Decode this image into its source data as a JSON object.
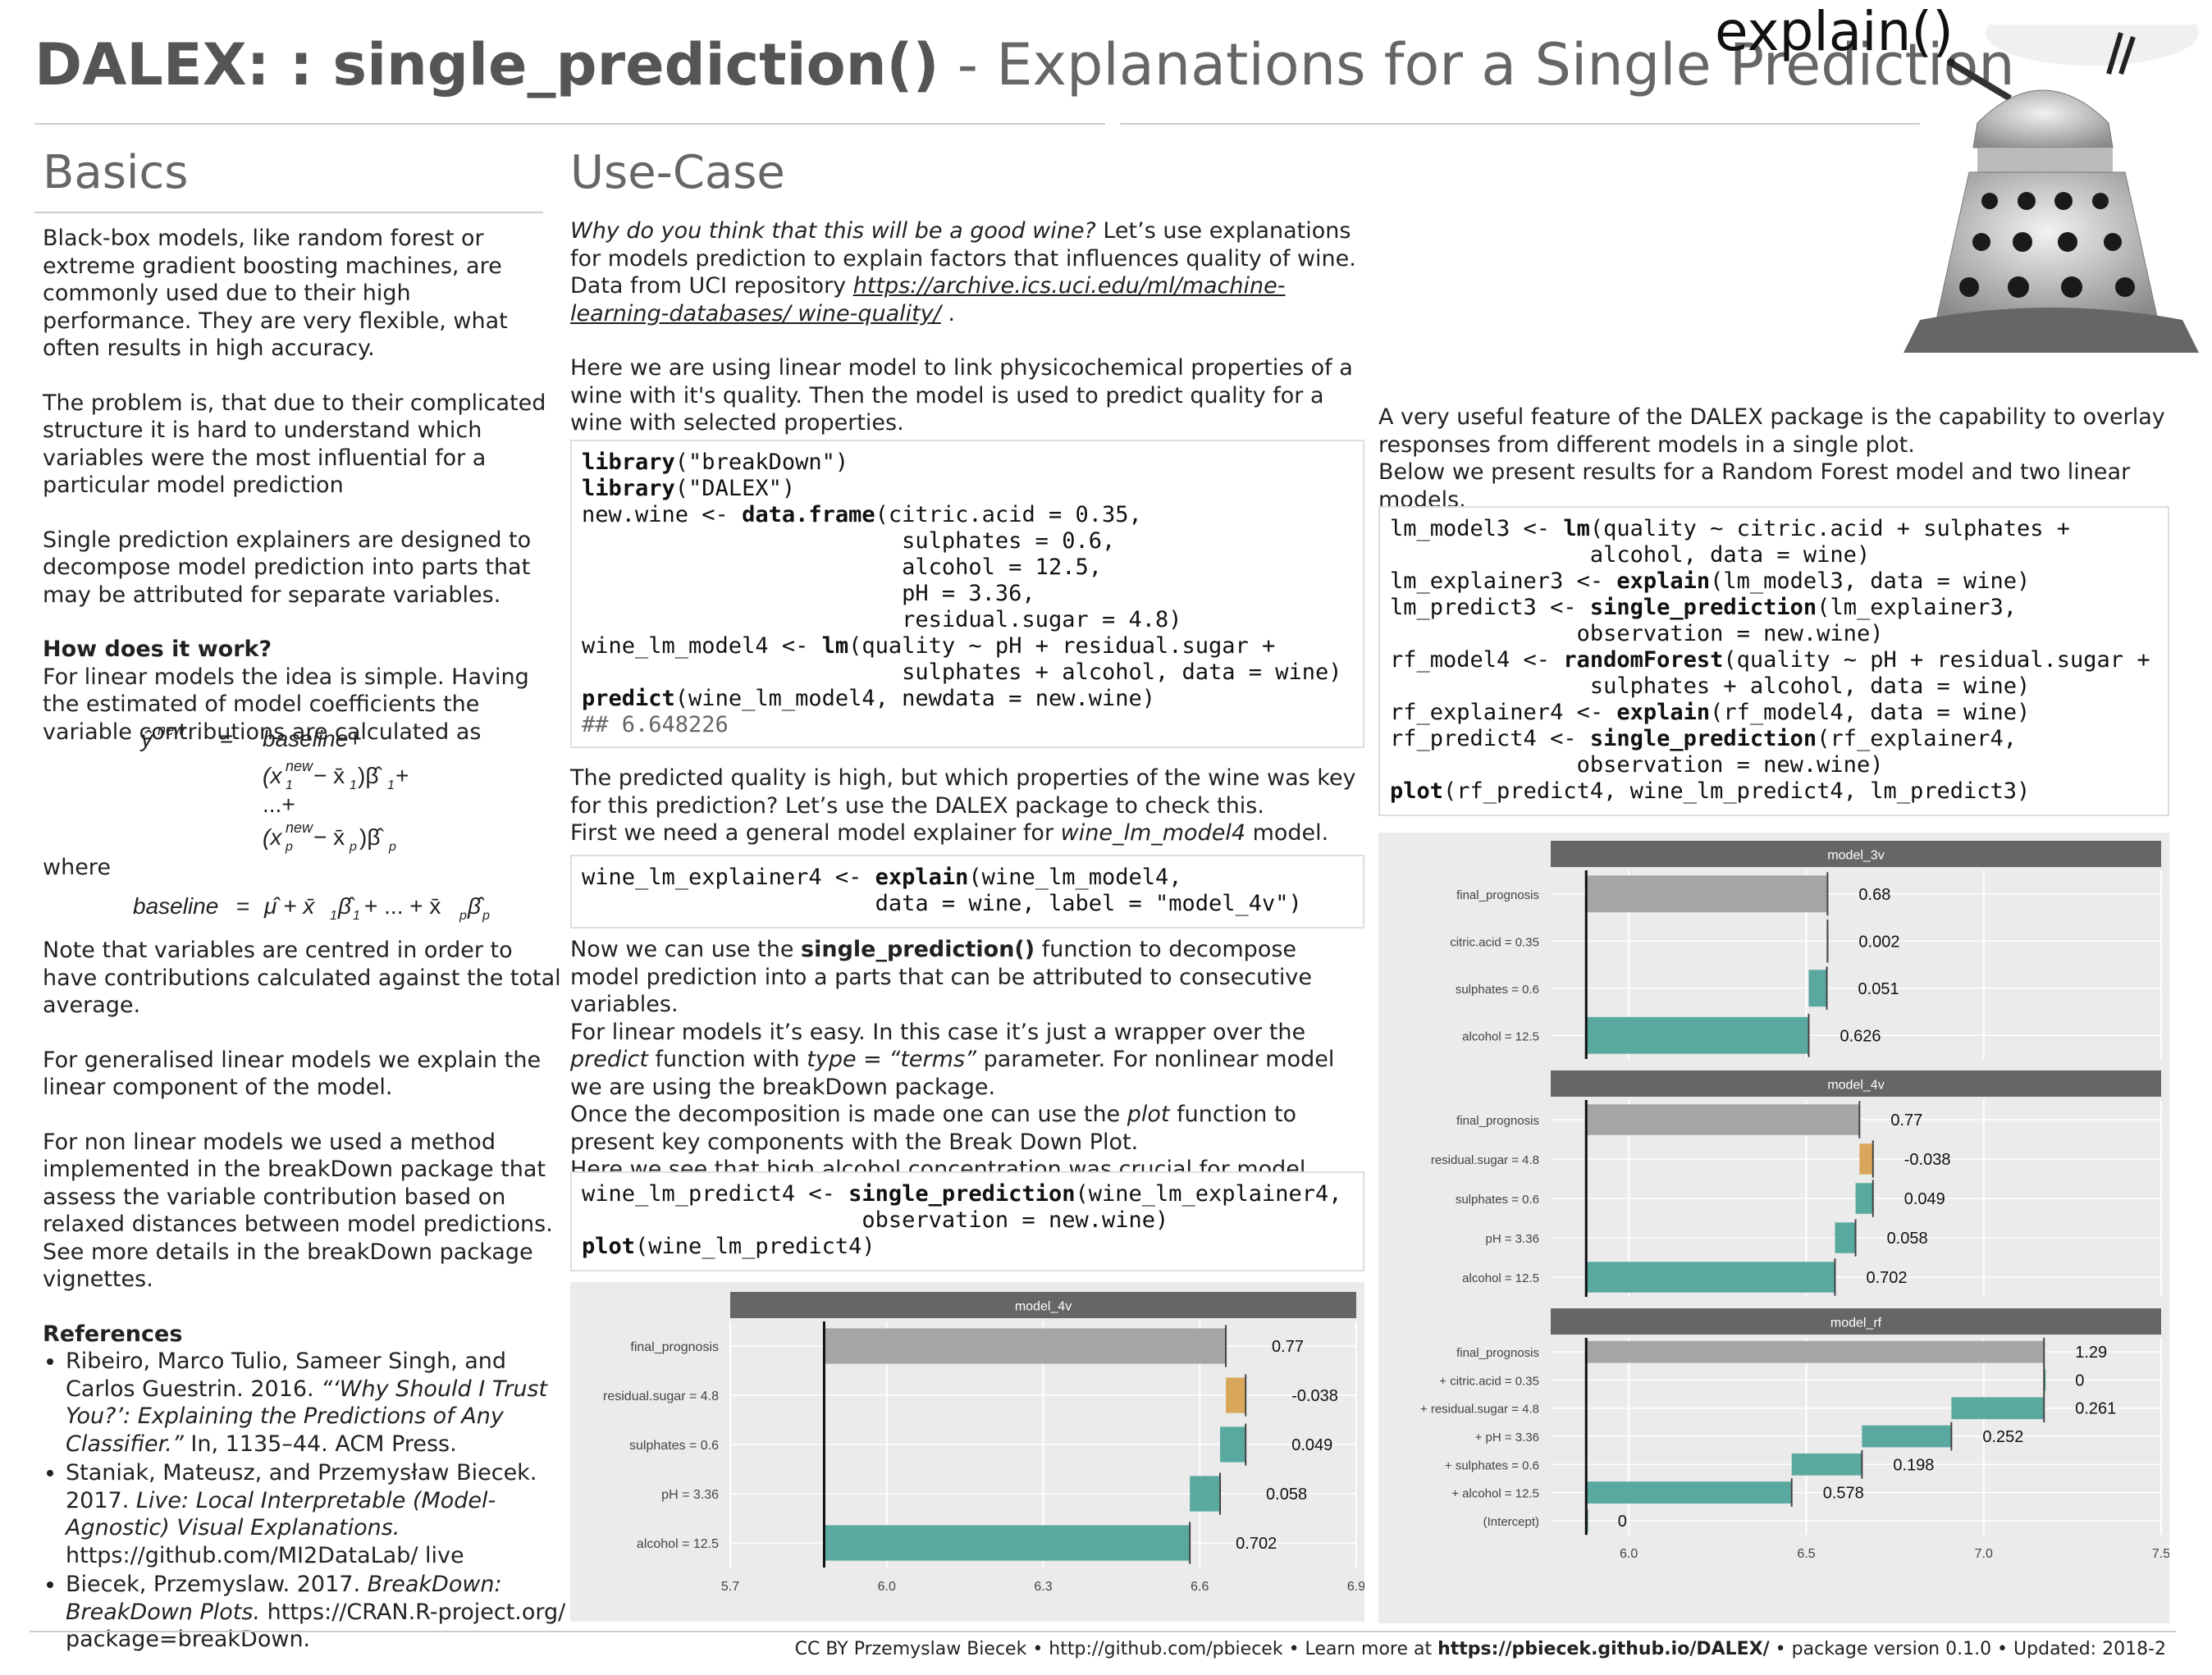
{
  "header": {
    "title_bold": "DALEX: : single_prediction()",
    "title_rest": " - Explanations for a Single Prediction",
    "explain_label": "explain()"
  },
  "basics": {
    "heading": "Basics",
    "p1": "Black-box models, like random forest or extreme gradient boosting machines, are commonly used due to their high performance. They are very flexible, what often results in high accuracy.",
    "p2": "The problem is, that due to their complicated structure it is hard to understand which variables were the most influential for a particular model prediction",
    "p3": "Single prediction explainers are designed to decompose model prediction into parts that may be attributed for separate variables.",
    "how_heading": "How does it work?",
    "p4": "For linear models the idea is simple. Having the estimated of model coefficients the variable contributions are calculated as",
    "where": "where",
    "p5": "Note  that variables are centred in order to have contributions calculated against the total average.",
    "p6": "For generalised linear models we explain the linear component of the model.",
    "p7": "For non linear models we used a method implemented in the breakDown package that assess the variable contribution based on relaxed distances between model predictions. See more details in the breakDown package vignettes.",
    "refs_heading": "References",
    "ref1_a": "Ribeiro, Marco Tulio, Sameer Singh, and Carlos Guestrin. 2016. ",
    "ref1_i": "“‘Why Should I Trust You?’: Explaining the Predictions of Any Classifier.”",
    "ref1_b": " In, 1135–44. ACM Press.",
    "ref2_a": "Staniak, Mateusz, and Przemysław Biecek. 2017. ",
    "ref2_i": "Live: Local Interpretable (Model-Agnostic) Visual Explanations.",
    "ref2_b": " https://github.com/MI2DataLab/ live",
    "ref3_a": "Biecek, Przemyslaw. 2017. ",
    "ref3_i": "BreakDown: BreakDown Plots.",
    "ref3_b": " https://CRAN.R-project.org/ package=breakDown."
  },
  "usecase": {
    "heading": "Use-Case",
    "p1_i": "Why do you think that this will be a good wine?",
    "p1_a": " Let’s use explanations for models prediction to explain factors that influences quality of wine. Data from UCI repository ",
    "p1_link": "https://archive.ics.uci.edu/ml/machine-learning-databases/ wine-quality/",
    "p1_end": " .",
    "p2": "Here we are using linear model to link physicochemical properties of a wine with it's quality. Then the model is used to predict quality for a wine with selected properties.",
    "p3_a": "The predicted quality is high, but which properties of the wine was key for this prediction? Let’s use the DALEX package to check this.",
    "p3_b": "First we need a general model explainer for ",
    "p3_i": "wine_lm_model4",
    "p3_c": " model.",
    "p4_a": "Now we can use the ",
    "p4_b": "single_prediction()",
    "p4_c": " function to decompose model prediction into a parts that can be attributed to consecutive variables.",
    "p4_d": "For linear models it’s easy. In this case it’s just a wrapper over the ",
    "p4_e": "predict",
    "p4_f": " function with ",
    "p4_g": "type = “terms”",
    "p4_h": " parameter. For nonlinear model we are using the breakDown package.",
    "p4_j": "Once the decomposition is made one can use the ",
    "p4_k": "plot",
    "p4_l": " function to present key components with the Break Down Plot.",
    "p4_m": "Here we see that high alcohol concentration was crucial for model prediction."
  },
  "right": {
    "p1": "A very useful feature of the DALEX package is the capability to overlay responses from different models in a single plot.",
    "p2": "Below we present results for a Random Forest model and two linear models."
  },
  "footer": {
    "a": "CC BY Przemyslaw Biecek  •  http://github.com/pbiecek •  Learn more at  ",
    "b": "https://pbiecek.github.io/DALEX/",
    "c": "  •  package version  0.1.0 •  Updated: 2018-2"
  },
  "colors": {
    "positive": "#5aa9a0",
    "negative": "#d9a75c",
    "final": "#a5a5a5",
    "strip": "#666666",
    "panel": "#ebebeb"
  },
  "chart_data": [
    {
      "type": "bar",
      "subtype": "waterfall",
      "panels": [
        {
          "strip": "model_4v",
          "rows": [
            {
              "label": "final_prognosis",
              "start": 5.88,
              "end": 6.65,
              "value": "0.77",
              "kind": "final"
            },
            {
              "label": "residual.sugar = 4.8",
              "start": 6.65,
              "end": 6.688,
              "value": "-0.038",
              "kind": "negative"
            },
            {
              "label": "sulphates = 0.6",
              "start": 6.639,
              "end": 6.688,
              "value": "0.049",
              "kind": "positive"
            },
            {
              "label": "pH = 3.36",
              "start": 6.581,
              "end": 6.639,
              "value": "0.058",
              "kind": "positive"
            },
            {
              "label": "alcohol = 12.5",
              "start": 5.879,
              "end": 6.581,
              "value": "0.702",
              "kind": "positive"
            }
          ]
        }
      ],
      "xticks": [
        "5.7",
        "6.0",
        "6.3",
        "6.6",
        "6.9"
      ],
      "xlim": [
        5.7,
        6.9
      ],
      "baseline": 5.88
    },
    {
      "type": "bar",
      "subtype": "waterfall",
      "panels": [
        {
          "strip": "model_3v",
          "rows": [
            {
              "label": "final_prognosis",
              "start": 5.88,
              "end": 6.56,
              "value": "0.68",
              "kind": "final"
            },
            {
              "label": "citric.acid = 0.35",
              "start": 6.558,
              "end": 6.56,
              "value": "0.002",
              "kind": "positive"
            },
            {
              "label": "sulphates = 0.6",
              "start": 6.507,
              "end": 6.558,
              "value": "0.051",
              "kind": "positive"
            },
            {
              "label": "alcohol = 12.5",
              "start": 5.881,
              "end": 6.507,
              "value": "0.626",
              "kind": "positive"
            }
          ]
        },
        {
          "strip": "model_4v",
          "rows": [
            {
              "label": "final_prognosis",
              "start": 5.88,
              "end": 6.65,
              "value": "0.77",
              "kind": "final"
            },
            {
              "label": "residual.sugar = 4.8",
              "start": 6.65,
              "end": 6.688,
              "value": "-0.038",
              "kind": "negative"
            },
            {
              "label": "sulphates = 0.6",
              "start": 6.639,
              "end": 6.688,
              "value": "0.049",
              "kind": "positive"
            },
            {
              "label": "pH = 3.36",
              "start": 6.581,
              "end": 6.639,
              "value": "0.058",
              "kind": "positive"
            },
            {
              "label": "alcohol = 12.5",
              "start": 5.879,
              "end": 6.581,
              "value": "0.702",
              "kind": "positive"
            }
          ]
        },
        {
          "strip": "model_rf",
          "rows": [
            {
              "label": "final_prognosis",
              "start": 5.88,
              "end": 7.17,
              "value": "1.29",
              "kind": "final"
            },
            {
              "label": "+ citric.acid = 0.35",
              "start": 7.17,
              "end": 7.17,
              "value": "0",
              "kind": "positive"
            },
            {
              "label": "+ residual.sugar = 4.8",
              "start": 6.909,
              "end": 7.17,
              "value": "0.261",
              "kind": "positive"
            },
            {
              "label": "+ pH = 3.36",
              "start": 6.657,
              "end": 6.909,
              "value": "0.252",
              "kind": "positive"
            },
            {
              "label": "+ sulphates = 0.6",
              "start": 6.459,
              "end": 6.657,
              "value": "0.198",
              "kind": "positive"
            },
            {
              "label": "+ alcohol = 12.5",
              "start": 5.881,
              "end": 6.459,
              "value": "0.578",
              "kind": "positive"
            },
            {
              "label": "(Intercept)",
              "start": 5.881,
              "end": 5.881,
              "value": "0",
              "kind": "positive"
            }
          ]
        }
      ],
      "xticks": [
        "6.0",
        "6.5",
        "7.0",
        "7.5"
      ],
      "xlim": [
        5.78,
        7.5
      ],
      "baseline": 5.88
    }
  ]
}
